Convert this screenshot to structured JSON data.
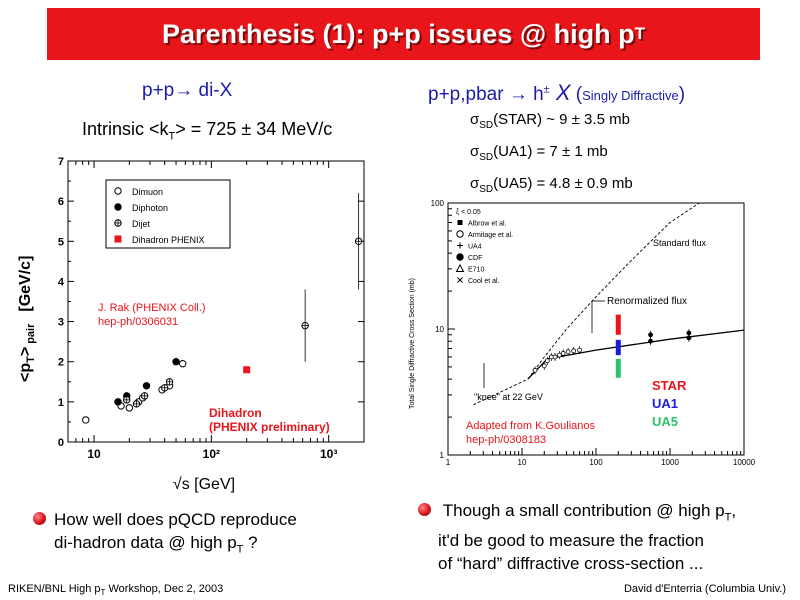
{
  "slide": {
    "title": "Parenthesis (1): p+p issues @ high p",
    "title_sub": "T"
  },
  "left": {
    "heading": "p+p→ di-X",
    "intrinsic": "Intrinsic <k",
    "intrinsic_sub": "T",
    "intrinsic_value": "> = 725 ± 34 MeV/c",
    "ylabel_main": "<p",
    "ylabel_sub1": "T",
    "ylabel_close": ">",
    "ylabel_sub2": "pair",
    "ylabel_unit": "[GeV/c]",
    "xlabel": "√s  [GeV]",
    "ref_line1": "J. Rak (PHENIX Coll.)",
    "ref_line2": "hep-ph/0306031",
    "note_line1": "Dihadron",
    "note_line2": "(PHENIX preliminary)",
    "bullet_line1": "How well does pQCD reproduce",
    "bullet_line2": "di-hadron data @ high p",
    "bullet_sub": "T",
    "bullet_end": " ?"
  },
  "right": {
    "heading_pre": "p+p,pbar → h",
    "heading_sup": "±",
    "heading_X": " X",
    "heading_open": " (",
    "heading_small": "Singly Diffractive",
    "heading_close": ")",
    "sigma": [
      {
        "pre": "σ",
        "sub": "SD",
        "text": "(STAR) ~ 9 ± 3.5 mb"
      },
      {
        "pre": "σ",
        "sub": "SD",
        "text": "(UA1) = 7 ± 1 mb"
      },
      {
        "pre": "σ",
        "sub": "SD",
        "text": "(UA5) = 4.8 ± 0.9 mb"
      }
    ],
    "bullet_line1": "Though a small contribution @ high p",
    "bullet_sub": "T",
    "bullet_end": ",",
    "bullet_line2": "it'd be good to measure the fraction",
    "bullet_line3": "of “hard” diffractive cross-section ..."
  },
  "footer": {
    "left_pre": "RIKEN/BNL High p",
    "left_sub": "T",
    "left_post": " Workshop, Dec 2, 2003",
    "right": "David d'Enterria (Columbia Univ.)"
  },
  "chart_data": [
    {
      "type": "scatter",
      "xscale": "log",
      "xlim": [
        6,
        2000
      ],
      "ylim": [
        0,
        7
      ],
      "x_ticks": [
        "10",
        "10²",
        "10³"
      ],
      "y_ticks": [
        "0",
        "1",
        "2",
        "3",
        "4",
        "5",
        "6",
        "7"
      ],
      "legend": [
        {
          "name": "Dimuon",
          "marker": "open-circle"
        },
        {
          "name": "Diphoton",
          "marker": "filled-circle"
        },
        {
          "name": "Dijet",
          "marker": "cross-circle"
        },
        {
          "name": "Dihadron PHENIX",
          "marker": "red-square",
          "color": "#e8151b"
        }
      ],
      "series": [
        {
          "name": "Dimuon",
          "points": [
            [
              8.5,
              0.55
            ],
            [
              17,
              0.9
            ],
            [
              20,
              0.85
            ],
            [
              24,
              1.0
            ],
            [
              26,
              1.1
            ],
            [
              38,
              1.3
            ],
            [
              44,
              1.4
            ],
            [
              57,
              1.95
            ]
          ]
        },
        {
          "name": "Diphoton",
          "points": [
            [
              16,
              1.0
            ],
            [
              19,
              1.15
            ],
            [
              28,
              1.4
            ],
            [
              50,
              2.0
            ]
          ]
        },
        {
          "name": "Dijet",
          "points": [
            [
              19,
              1.05
            ],
            [
              23,
              0.95
            ],
            [
              27,
              1.15
            ],
            [
              40,
              1.35
            ],
            [
              44,
              1.5
            ],
            [
              630,
              2.9
            ],
            [
              1800,
              5.0
            ]
          ]
        },
        {
          "name": "Dihadron PHENIX",
          "points": [
            [
              200,
              1.8
            ]
          ]
        }
      ]
    },
    {
      "type": "scatter",
      "xscale": "log",
      "yscale": "log",
      "xlim": [
        1,
        10000
      ],
      "ylim": [
        1,
        100
      ],
      "x_ticks": [
        "1",
        "10",
        "100",
        "1000",
        "10000"
      ],
      "y_ticks": [
        "1",
        "10",
        "100"
      ],
      "ylabel": "Total Single Diffractive Cross Section (mb)",
      "legend": [
        {
          "name": "ξ < 0.05",
          "marker": "none"
        },
        {
          "name": "Albrow et al.",
          "marker": "filled-square"
        },
        {
          "name": "Armitage et al.",
          "marker": "open-circle"
        },
        {
          "name": "UA4",
          "marker": "plus"
        },
        {
          "name": "CDF",
          "marker": "filled-circle"
        },
        {
          "name": "E710",
          "marker": "open-triangle"
        },
        {
          "name": "Cool et al.",
          "marker": "x"
        }
      ],
      "curve_labels": [
        "Standard flux",
        "Renormalized flux"
      ],
      "annotations": [
        "\"knee\" at 22 GeV",
        "Adapted from K.Goulianos",
        "hep-ph/0308183"
      ],
      "highlight": [
        {
          "name": "STAR",
          "color": "#e8151b",
          "x": 200,
          "ymin": 9,
          "ymax": 13
        },
        {
          "name": "UA1",
          "color": "#1c1cd8",
          "x": 200,
          "ymin": 6.2,
          "ymax": 8.2
        },
        {
          "name": "UA5",
          "color": "#2ec06a",
          "x": 200,
          "ymin": 4.1,
          "ymax": 5.8
        }
      ],
      "data_points": [
        [
          15,
          4.7
        ],
        [
          20,
          5.1
        ],
        [
          22,
          5.6
        ],
        [
          25,
          6.0
        ],
        [
          28,
          6.0
        ],
        [
          32,
          6.2
        ],
        [
          36,
          6.4
        ],
        [
          42,
          6.6
        ],
        [
          50,
          6.7
        ],
        [
          60,
          6.8
        ],
        [
          200,
          7.5
        ],
        [
          546,
          8.0
        ],
        [
          546,
          9.0
        ],
        [
          1800,
          8.5
        ],
        [
          1800,
          9.3
        ]
      ],
      "standard_flux": [
        [
          12,
          4.0
        ],
        [
          20,
          6.0
        ],
        [
          40,
          10.0
        ],
        [
          100,
          18.0
        ],
        [
          300,
          35.0
        ],
        [
          1000,
          70.0
        ],
        [
          2500,
          100.0
        ]
      ],
      "renormalized_flux": [
        [
          12,
          4.0
        ],
        [
          22,
          5.8
        ],
        [
          100,
          6.8
        ],
        [
          1000,
          8.3
        ],
        [
          10000,
          9.8
        ]
      ]
    }
  ]
}
